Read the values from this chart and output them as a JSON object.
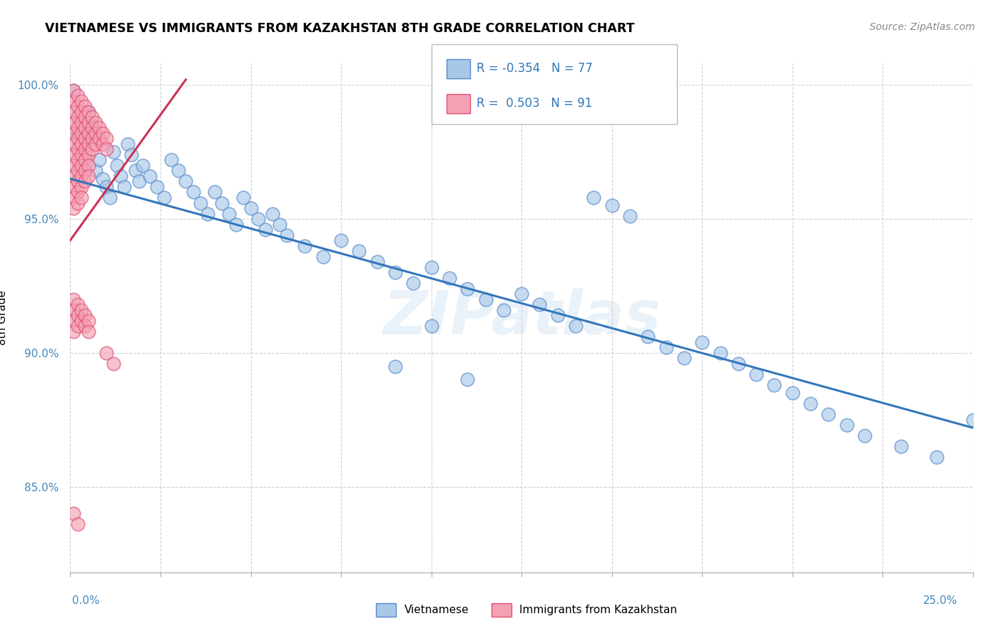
{
  "title": "VIETNAMESE VS IMMIGRANTS FROM KAZAKHSTAN 8TH GRADE CORRELATION CHART",
  "source": "Source: ZipAtlas.com",
  "ylabel": "8th Grade",
  "x_range": [
    0.0,
    0.25
  ],
  "y_range": [
    0.818,
    1.008
  ],
  "color_blue": "#a8c8e8",
  "color_pink": "#f4a0b5",
  "color_blue_edge": "#5588cc",
  "color_pink_edge": "#e05070",
  "color_blue_line": "#3377bb",
  "color_pink_line": "#cc3355",
  "watermark": "ZIPatlas",
  "blue_trend": [
    0.0,
    0.965,
    0.25,
    0.872
  ],
  "pink_trend": [
    0.0,
    0.942,
    0.032,
    1.002
  ],
  "blue_dots": [
    [
      0.001,
      0.998
    ],
    [
      0.002,
      0.982
    ],
    [
      0.003,
      0.978
    ],
    [
      0.004,
      0.974
    ],
    [
      0.005,
      0.99
    ],
    [
      0.006,
      0.985
    ],
    [
      0.007,
      0.968
    ],
    [
      0.008,
      0.972
    ],
    [
      0.009,
      0.965
    ],
    [
      0.01,
      0.962
    ],
    [
      0.011,
      0.958
    ],
    [
      0.012,
      0.975
    ],
    [
      0.013,
      0.97
    ],
    [
      0.014,
      0.966
    ],
    [
      0.015,
      0.962
    ],
    [
      0.016,
      0.978
    ],
    [
      0.017,
      0.974
    ],
    [
      0.018,
      0.968
    ],
    [
      0.019,
      0.964
    ],
    [
      0.02,
      0.97
    ],
    [
      0.022,
      0.966
    ],
    [
      0.024,
      0.962
    ],
    [
      0.026,
      0.958
    ],
    [
      0.028,
      0.972
    ],
    [
      0.03,
      0.968
    ],
    [
      0.032,
      0.964
    ],
    [
      0.034,
      0.96
    ],
    [
      0.036,
      0.956
    ],
    [
      0.038,
      0.952
    ],
    [
      0.04,
      0.96
    ],
    [
      0.042,
      0.956
    ],
    [
      0.044,
      0.952
    ],
    [
      0.046,
      0.948
    ],
    [
      0.048,
      0.958
    ],
    [
      0.05,
      0.954
    ],
    [
      0.052,
      0.95
    ],
    [
      0.054,
      0.946
    ],
    [
      0.056,
      0.952
    ],
    [
      0.058,
      0.948
    ],
    [
      0.06,
      0.944
    ],
    [
      0.065,
      0.94
    ],
    [
      0.07,
      0.936
    ],
    [
      0.075,
      0.942
    ],
    [
      0.08,
      0.938
    ],
    [
      0.085,
      0.934
    ],
    [
      0.09,
      0.93
    ],
    [
      0.095,
      0.926
    ],
    [
      0.1,
      0.932
    ],
    [
      0.105,
      0.928
    ],
    [
      0.11,
      0.924
    ],
    [
      0.115,
      0.92
    ],
    [
      0.12,
      0.916
    ],
    [
      0.125,
      0.922
    ],
    [
      0.13,
      0.918
    ],
    [
      0.135,
      0.914
    ],
    [
      0.14,
      0.91
    ],
    [
      0.145,
      0.958
    ],
    [
      0.15,
      0.955
    ],
    [
      0.155,
      0.951
    ],
    [
      0.16,
      0.906
    ],
    [
      0.165,
      0.902
    ],
    [
      0.17,
      0.898
    ],
    [
      0.175,
      0.904
    ],
    [
      0.18,
      0.9
    ],
    [
      0.185,
      0.896
    ],
    [
      0.19,
      0.892
    ],
    [
      0.195,
      0.888
    ],
    [
      0.2,
      0.885
    ],
    [
      0.205,
      0.881
    ],
    [
      0.21,
      0.877
    ],
    [
      0.215,
      0.873
    ],
    [
      0.22,
      0.869
    ],
    [
      0.23,
      0.865
    ],
    [
      0.24,
      0.861
    ],
    [
      0.25,
      0.875
    ],
    [
      0.09,
      0.895
    ],
    [
      0.1,
      0.91
    ],
    [
      0.11,
      0.89
    ]
  ],
  "pink_dots": [
    [
      0.001,
      0.998
    ],
    [
      0.001,
      0.994
    ],
    [
      0.001,
      0.99
    ],
    [
      0.001,
      0.986
    ],
    [
      0.001,
      0.982
    ],
    [
      0.001,
      0.978
    ],
    [
      0.001,
      0.974
    ],
    [
      0.001,
      0.97
    ],
    [
      0.001,
      0.966
    ],
    [
      0.001,
      0.962
    ],
    [
      0.001,
      0.958
    ],
    [
      0.001,
      0.954
    ],
    [
      0.002,
      0.996
    ],
    [
      0.002,
      0.992
    ],
    [
      0.002,
      0.988
    ],
    [
      0.002,
      0.984
    ],
    [
      0.002,
      0.98
    ],
    [
      0.002,
      0.976
    ],
    [
      0.002,
      0.972
    ],
    [
      0.002,
      0.968
    ],
    [
      0.002,
      0.964
    ],
    [
      0.002,
      0.96
    ],
    [
      0.002,
      0.956
    ],
    [
      0.003,
      0.994
    ],
    [
      0.003,
      0.99
    ],
    [
      0.003,
      0.986
    ],
    [
      0.003,
      0.982
    ],
    [
      0.003,
      0.978
    ],
    [
      0.003,
      0.974
    ],
    [
      0.003,
      0.97
    ],
    [
      0.003,
      0.966
    ],
    [
      0.003,
      0.962
    ],
    [
      0.003,
      0.958
    ],
    [
      0.004,
      0.992
    ],
    [
      0.004,
      0.988
    ],
    [
      0.004,
      0.984
    ],
    [
      0.004,
      0.98
    ],
    [
      0.004,
      0.976
    ],
    [
      0.004,
      0.972
    ],
    [
      0.004,
      0.968
    ],
    [
      0.004,
      0.964
    ],
    [
      0.005,
      0.99
    ],
    [
      0.005,
      0.986
    ],
    [
      0.005,
      0.982
    ],
    [
      0.005,
      0.978
    ],
    [
      0.005,
      0.974
    ],
    [
      0.005,
      0.97
    ],
    [
      0.005,
      0.966
    ],
    [
      0.006,
      0.988
    ],
    [
      0.006,
      0.984
    ],
    [
      0.006,
      0.98
    ],
    [
      0.006,
      0.976
    ],
    [
      0.007,
      0.986
    ],
    [
      0.007,
      0.982
    ],
    [
      0.007,
      0.978
    ],
    [
      0.008,
      0.984
    ],
    [
      0.008,
      0.98
    ],
    [
      0.009,
      0.982
    ],
    [
      0.009,
      0.978
    ],
    [
      0.01,
      0.98
    ],
    [
      0.01,
      0.976
    ],
    [
      0.001,
      0.92
    ],
    [
      0.001,
      0.916
    ],
    [
      0.001,
      0.912
    ],
    [
      0.001,
      0.908
    ],
    [
      0.002,
      0.918
    ],
    [
      0.002,
      0.914
    ],
    [
      0.002,
      0.91
    ],
    [
      0.003,
      0.916
    ],
    [
      0.003,
      0.912
    ],
    [
      0.004,
      0.914
    ],
    [
      0.004,
      0.91
    ],
    [
      0.005,
      0.912
    ],
    [
      0.005,
      0.908
    ],
    [
      0.001,
      0.84
    ],
    [
      0.002,
      0.836
    ],
    [
      0.01,
      0.9
    ],
    [
      0.012,
      0.896
    ]
  ]
}
